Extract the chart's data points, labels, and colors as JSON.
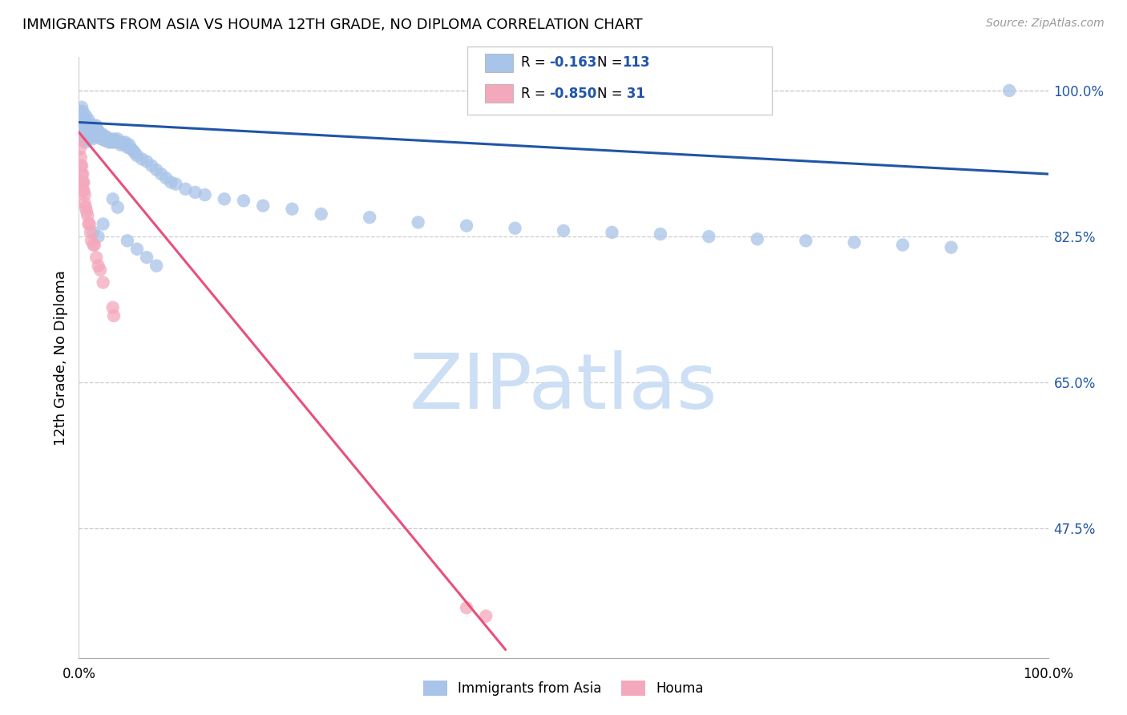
{
  "title": "IMMIGRANTS FROM ASIA VS HOUMA 12TH GRADE, NO DIPLOMA CORRELATION CHART",
  "source": "Source: ZipAtlas.com",
  "ylabel": "12th Grade, No Diploma",
  "ytick_labels": [
    "100.0%",
    "82.5%",
    "65.0%",
    "47.5%"
  ],
  "ytick_values": [
    1.0,
    0.825,
    0.65,
    0.475
  ],
  "legend_blue_r_val": "-0.163",
  "legend_blue_n_val": "113",
  "legend_pink_r_val": "-0.850",
  "legend_pink_n_val": " 31",
  "blue_color": "#a8c4e8",
  "pink_color": "#f4a8bc",
  "blue_line_color": "#2055a8",
  "pink_line_color": "#e8507a",
  "watermark": "ZIPatlas",
  "watermark_color": "#ccdff5",
  "blue_scatter_x": [
    0.001,
    0.002,
    0.002,
    0.003,
    0.003,
    0.003,
    0.004,
    0.004,
    0.004,
    0.005,
    0.005,
    0.005,
    0.005,
    0.006,
    0.006,
    0.006,
    0.007,
    0.007,
    0.007,
    0.007,
    0.008,
    0.008,
    0.008,
    0.009,
    0.009,
    0.01,
    0.01,
    0.01,
    0.011,
    0.011,
    0.012,
    0.012,
    0.013,
    0.013,
    0.014,
    0.014,
    0.015,
    0.015,
    0.016,
    0.016,
    0.017,
    0.018,
    0.018,
    0.019,
    0.02,
    0.021,
    0.022,
    0.023,
    0.024,
    0.025,
    0.026,
    0.027,
    0.028,
    0.029,
    0.03,
    0.031,
    0.032,
    0.034,
    0.035,
    0.036,
    0.037,
    0.038,
    0.04,
    0.042,
    0.043,
    0.045,
    0.047,
    0.048,
    0.05,
    0.052,
    0.054,
    0.056,
    0.058,
    0.06,
    0.065,
    0.07,
    0.075,
    0.08,
    0.085,
    0.09,
    0.095,
    0.1,
    0.11,
    0.12,
    0.13,
    0.15,
    0.17,
    0.19,
    0.22,
    0.25,
    0.3,
    0.35,
    0.4,
    0.45,
    0.5,
    0.55,
    0.6,
    0.65,
    0.7,
    0.75,
    0.8,
    0.85,
    0.9,
    0.96,
    0.035,
    0.04,
    0.02,
    0.025,
    0.015,
    0.05,
    0.06,
    0.07,
    0.08
  ],
  "blue_scatter_y": [
    0.975,
    0.97,
    0.96,
    0.98,
    0.965,
    0.955,
    0.975,
    0.96,
    0.95,
    0.97,
    0.96,
    0.95,
    0.94,
    0.965,
    0.955,
    0.945,
    0.97,
    0.958,
    0.948,
    0.938,
    0.962,
    0.952,
    0.942,
    0.958,
    0.948,
    0.965,
    0.955,
    0.945,
    0.96,
    0.95,
    0.958,
    0.948,
    0.955,
    0.945,
    0.952,
    0.942,
    0.958,
    0.948,
    0.955,
    0.945,
    0.95,
    0.958,
    0.948,
    0.945,
    0.952,
    0.948,
    0.945,
    0.942,
    0.948,
    0.945,
    0.942,
    0.94,
    0.945,
    0.942,
    0.94,
    0.938,
    0.942,
    0.938,
    0.94,
    0.942,
    0.938,
    0.94,
    0.942,
    0.938,
    0.935,
    0.938,
    0.935,
    0.938,
    0.932,
    0.935,
    0.93,
    0.928,
    0.925,
    0.922,
    0.918,
    0.915,
    0.91,
    0.905,
    0.9,
    0.895,
    0.89,
    0.888,
    0.882,
    0.878,
    0.875,
    0.87,
    0.868,
    0.862,
    0.858,
    0.852,
    0.848,
    0.842,
    0.838,
    0.835,
    0.832,
    0.83,
    0.828,
    0.825,
    0.822,
    0.82,
    0.818,
    0.815,
    0.812,
    1.0,
    0.87,
    0.86,
    0.825,
    0.84,
    0.83,
    0.82,
    0.81,
    0.8,
    0.79
  ],
  "pink_scatter_x": [
    0.001,
    0.001,
    0.002,
    0.002,
    0.003,
    0.003,
    0.003,
    0.004,
    0.004,
    0.004,
    0.005,
    0.005,
    0.006,
    0.006,
    0.007,
    0.008,
    0.009,
    0.01,
    0.011,
    0.012,
    0.013,
    0.015,
    0.016,
    0.018,
    0.02,
    0.022,
    0.025,
    0.035,
    0.036,
    0.4,
    0.42
  ],
  "pink_scatter_y": [
    0.94,
    0.93,
    0.92,
    0.91,
    0.91,
    0.9,
    0.89,
    0.9,
    0.89,
    0.88,
    0.89,
    0.88,
    0.875,
    0.865,
    0.86,
    0.855,
    0.85,
    0.84,
    0.84,
    0.83,
    0.82,
    0.815,
    0.815,
    0.8,
    0.79,
    0.785,
    0.77,
    0.74,
    0.73,
    0.38,
    0.37
  ],
  "blue_trend_x": [
    0.0,
    1.0
  ],
  "blue_trend_y": [
    0.962,
    0.9
  ],
  "pink_trend_x": [
    0.0,
    0.44
  ],
  "pink_trend_y": [
    0.95,
    0.33
  ],
  "xmin": 0.0,
  "xmax": 1.0,
  "ymin": 0.32,
  "ymax": 1.04
}
